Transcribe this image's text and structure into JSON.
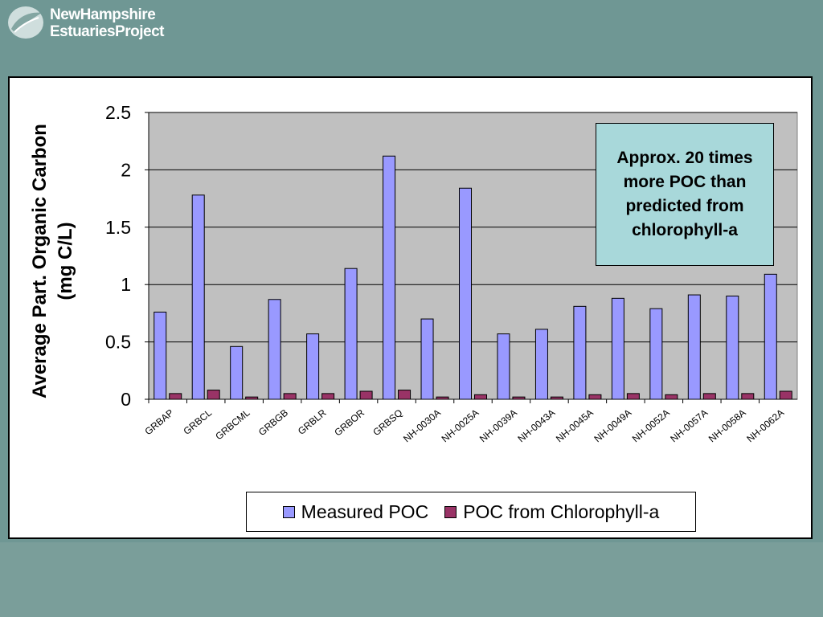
{
  "header": {
    "logo_line1": "NewHampshire",
    "logo_line2": "EstuariesProject"
  },
  "colors": {
    "background": "#6f9794",
    "plot_area": "#c0c0c0",
    "measured": "#9999ff",
    "predicted": "#993366",
    "annotation_fill": "#a8d8da"
  },
  "annotation": {
    "text": "Approx. 20 times more POC than predicted from chlorophyll-a"
  },
  "chart_data": {
    "type": "bar",
    "title": "",
    "ylabel_line1": "Average Part. Organic Carbon",
    "ylabel_line2": "(mg C/L)",
    "xlabel": "",
    "ylim": [
      0,
      2.5
    ],
    "yticks": [
      "0",
      "0.5",
      "1",
      "1.5",
      "2",
      "2.5"
    ],
    "grid": true,
    "legend": "bottom",
    "categories": [
      "GRBAP",
      "GRBCL",
      "GRBCML",
      "GRBGB",
      "GRBLR",
      "GRBOR",
      "GRBSQ",
      "NH-0030A",
      "NH-0025A",
      "NH-0039A",
      "NH-0043A",
      "NH-0045A",
      "NH-0049A",
      "NH-0052A",
      "NH-0057A",
      "NH-0058A",
      "NH-0062A"
    ],
    "series": [
      {
        "name": "Measured POC",
        "values": [
          0.76,
          1.78,
          0.46,
          0.87,
          0.57,
          1.14,
          2.12,
          0.7,
          1.84,
          0.57,
          0.61,
          0.81,
          0.88,
          0.79,
          0.91,
          0.9,
          1.09
        ]
      },
      {
        "name": "POC from Chlorophyll-a",
        "values": [
          0.05,
          0.08,
          0.02,
          0.05,
          0.05,
          0.07,
          0.08,
          0.02,
          0.04,
          0.02,
          0.02,
          0.04,
          0.05,
          0.04,
          0.05,
          0.05,
          0.07
        ]
      }
    ]
  }
}
